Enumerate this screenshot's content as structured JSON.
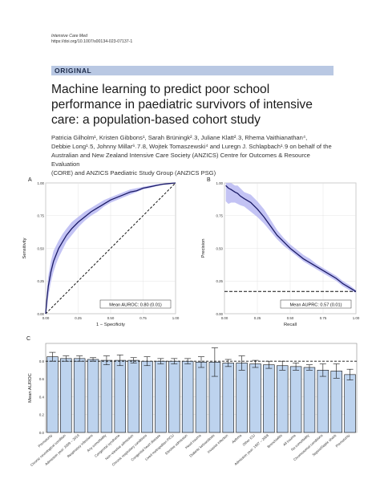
{
  "header": {
    "journal": "Intensive Care Med",
    "doi": "https://doi.org/10.1007/s00134-023-07137-1"
  },
  "article_type": "ORIGINAL",
  "title": "Machine learning to predict poor school performance in paediatric survivors of intensive care: a population-based cohort study",
  "authors": {
    "line1": "Patricia Gilholm¹, Kristen Gibbons¹, Sarah Brüningk²˒3, Juliane Klatt²˒3, Rhema Vaithianathan⁴,",
    "line2": "Debbie Long¹˒5, Johnny Millar⁶˒7˒8, Wojtek Tomaszewski⁴ and Luregn J. Schlapbach¹˒9 on behalf of the",
    "line3": "Australian and New Zealand Intensive Care Society (ANZICS) Centre for Outcomes & Resource Evaluation",
    "line4": "(CORE) and ANZICS Paediatric Study Group (ANZICS PSG)"
  },
  "colors": {
    "band": "#b9b9f2",
    "line": "#1a1a66",
    "bar": "#bdd3ee"
  },
  "chart_data": [
    {
      "panel": "A",
      "type": "line",
      "xlabel": "1 − Specificity",
      "ylabel": "Sensitivity",
      "xlim": [
        0,
        1
      ],
      "ylim": [
        0,
        1
      ],
      "xticks": [
        "0.00",
        "0.25",
        "0.50",
        "0.75",
        "1.00"
      ],
      "yticks": [
        "0.00",
        "0.25",
        "0.50",
        "0.75",
        "1.00"
      ],
      "grid": true,
      "annotation": "Mean AUROC: 0.80 (0.01)",
      "x": [
        0,
        0.01,
        0.02,
        0.04,
        0.06,
        0.08,
        0.1,
        0.13,
        0.16,
        0.2,
        0.25,
        0.3,
        0.35,
        0.4,
        0.45,
        0.5,
        0.55,
        0.6,
        0.65,
        0.7,
        0.75,
        0.8,
        0.85,
        0.9,
        0.95,
        1.0
      ],
      "y": [
        0,
        0.12,
        0.21,
        0.32,
        0.4,
        0.45,
        0.5,
        0.55,
        0.6,
        0.65,
        0.7,
        0.74,
        0.78,
        0.81,
        0.84,
        0.87,
        0.89,
        0.91,
        0.93,
        0.94,
        0.96,
        0.97,
        0.98,
        0.99,
        0.995,
        1.0
      ],
      "y_lower": [
        0,
        0.05,
        0.13,
        0.24,
        0.32,
        0.38,
        0.43,
        0.49,
        0.55,
        0.6,
        0.66,
        0.71,
        0.75,
        0.78,
        0.82,
        0.85,
        0.87,
        0.89,
        0.91,
        0.93,
        0.95,
        0.96,
        0.975,
        0.985,
        0.99,
        1.0
      ],
      "y_upper": [
        0,
        0.19,
        0.29,
        0.4,
        0.48,
        0.52,
        0.56,
        0.61,
        0.65,
        0.7,
        0.74,
        0.78,
        0.81,
        0.84,
        0.87,
        0.89,
        0.91,
        0.93,
        0.95,
        0.96,
        0.97,
        0.98,
        0.99,
        0.995,
        1.0,
        1.0
      ],
      "reference_line": "diagonal"
    },
    {
      "panel": "B",
      "type": "line",
      "xlabel": "Recall",
      "ylabel": "Precision",
      "xlim": [
        0,
        1
      ],
      "ylim": [
        0,
        1
      ],
      "xticks": [
        "0.00",
        "0.25",
        "0.50",
        "0.75",
        "1.00"
      ],
      "yticks": [
        "0.00",
        "0.25",
        "0.50",
        "0.75",
        "1.00"
      ],
      "grid": true,
      "annotation": "Mean AUPRC: 0.57 (0.01)",
      "x": [
        0.01,
        0.03,
        0.05,
        0.08,
        0.1,
        0.12,
        0.15,
        0.2,
        0.25,
        0.3,
        0.35,
        0.4,
        0.45,
        0.5,
        0.55,
        0.6,
        0.65,
        0.7,
        0.75,
        0.8,
        0.85,
        0.9,
        0.95,
        1.0
      ],
      "y": [
        0.98,
        0.96,
        0.95,
        0.93,
        0.92,
        0.9,
        0.88,
        0.85,
        0.8,
        0.74,
        0.67,
        0.6,
        0.55,
        0.5,
        0.46,
        0.42,
        0.39,
        0.36,
        0.33,
        0.3,
        0.27,
        0.23,
        0.2,
        0.17
      ],
      "y_lower": [
        0.86,
        0.84,
        0.85,
        0.85,
        0.84,
        0.83,
        0.82,
        0.78,
        0.74,
        0.69,
        0.63,
        0.57,
        0.52,
        0.48,
        0.44,
        0.4,
        0.37,
        0.34,
        0.31,
        0.28,
        0.25,
        0.21,
        0.18,
        0.16
      ],
      "y_upper": [
        1.0,
        1.0,
        1.0,
        0.98,
        0.98,
        0.96,
        0.93,
        0.91,
        0.86,
        0.8,
        0.72,
        0.64,
        0.58,
        0.53,
        0.49,
        0.45,
        0.42,
        0.38,
        0.35,
        0.32,
        0.29,
        0.25,
        0.22,
        0.18
      ],
      "baseline": 0.17
    },
    {
      "panel": "C",
      "type": "bar",
      "ylabel": "Mean AUROC",
      "ylim": [
        0,
        1
      ],
      "yticks": [
        "0.0",
        "0.2",
        "0.4",
        "0.6",
        "0.8"
      ],
      "reference_line": 0.8,
      "categories": [
        "Prematurity",
        "Chronic neurological condition",
        "Admission year: 2009 – 2019",
        "Respiratory infections",
        "Any comorbidity",
        "Congenital syndrome",
        "Non−elective admission",
        "Chronic respiratory conditions",
        "Congenital heart disease",
        "Lived metropolitan PICU",
        "Elective admission",
        "Head trauma",
        "Diabetic ketoacidosis",
        "Invasive infection",
        "Asthma",
        "Other ICU",
        "Admission year: 1997 – 2008",
        "Bronchiolitis",
        "All trauma",
        "No comorbidity",
        "Chromosomal conditions",
        "Sepsis/Septic shock",
        "Prematurity"
      ],
      "values": [
        0.85,
        0.83,
        0.83,
        0.82,
        0.81,
        0.81,
        0.81,
        0.8,
        0.8,
        0.8,
        0.8,
        0.79,
        0.79,
        0.78,
        0.78,
        0.77,
        0.76,
        0.75,
        0.74,
        0.73,
        0.7,
        0.69,
        0.65
      ],
      "err": [
        0.05,
        0.03,
        0.03,
        0.02,
        0.05,
        0.06,
        0.03,
        0.05,
        0.03,
        0.03,
        0.03,
        0.06,
        0.16,
        0.04,
        0.08,
        0.04,
        0.04,
        0.05,
        0.04,
        0.03,
        0.07,
        0.08,
        0.06
      ]
    }
  ],
  "panel_labels": {
    "a": "A",
    "b": "B",
    "c": "C"
  }
}
